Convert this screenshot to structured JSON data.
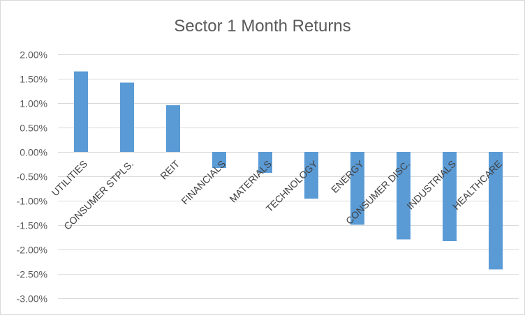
{
  "chart_data": {
    "type": "bar",
    "title": "Sector 1 Month Returns",
    "categories": [
      "UTILITIES",
      "CONSUMER STPLS.",
      "REIT",
      "FINANCIALS",
      "MATERIALS",
      "TECHNOLOGY",
      "ENERGY",
      "CONSUMER DISC.",
      "INDUSTRIALS",
      "HEALTHCARE"
    ],
    "values": [
      1.65,
      1.42,
      0.96,
      -0.33,
      -0.43,
      -0.96,
      -1.49,
      -1.79,
      -1.83,
      -2.41
    ],
    "value_format": "percent",
    "ylim": [
      -3.0,
      2.0
    ],
    "yticks": [
      "2.00%",
      "1.50%",
      "1.00%",
      "0.50%",
      "0.00%",
      "-0.50%",
      "-1.00%",
      "-1.50%",
      "-2.00%",
      "-2.50%",
      "-3.00%"
    ],
    "xlabel": "",
    "ylabel": "",
    "grid": true,
    "legend": "none",
    "bar_color": "#5b9bd5",
    "grid_color": "#d9d9d9"
  }
}
